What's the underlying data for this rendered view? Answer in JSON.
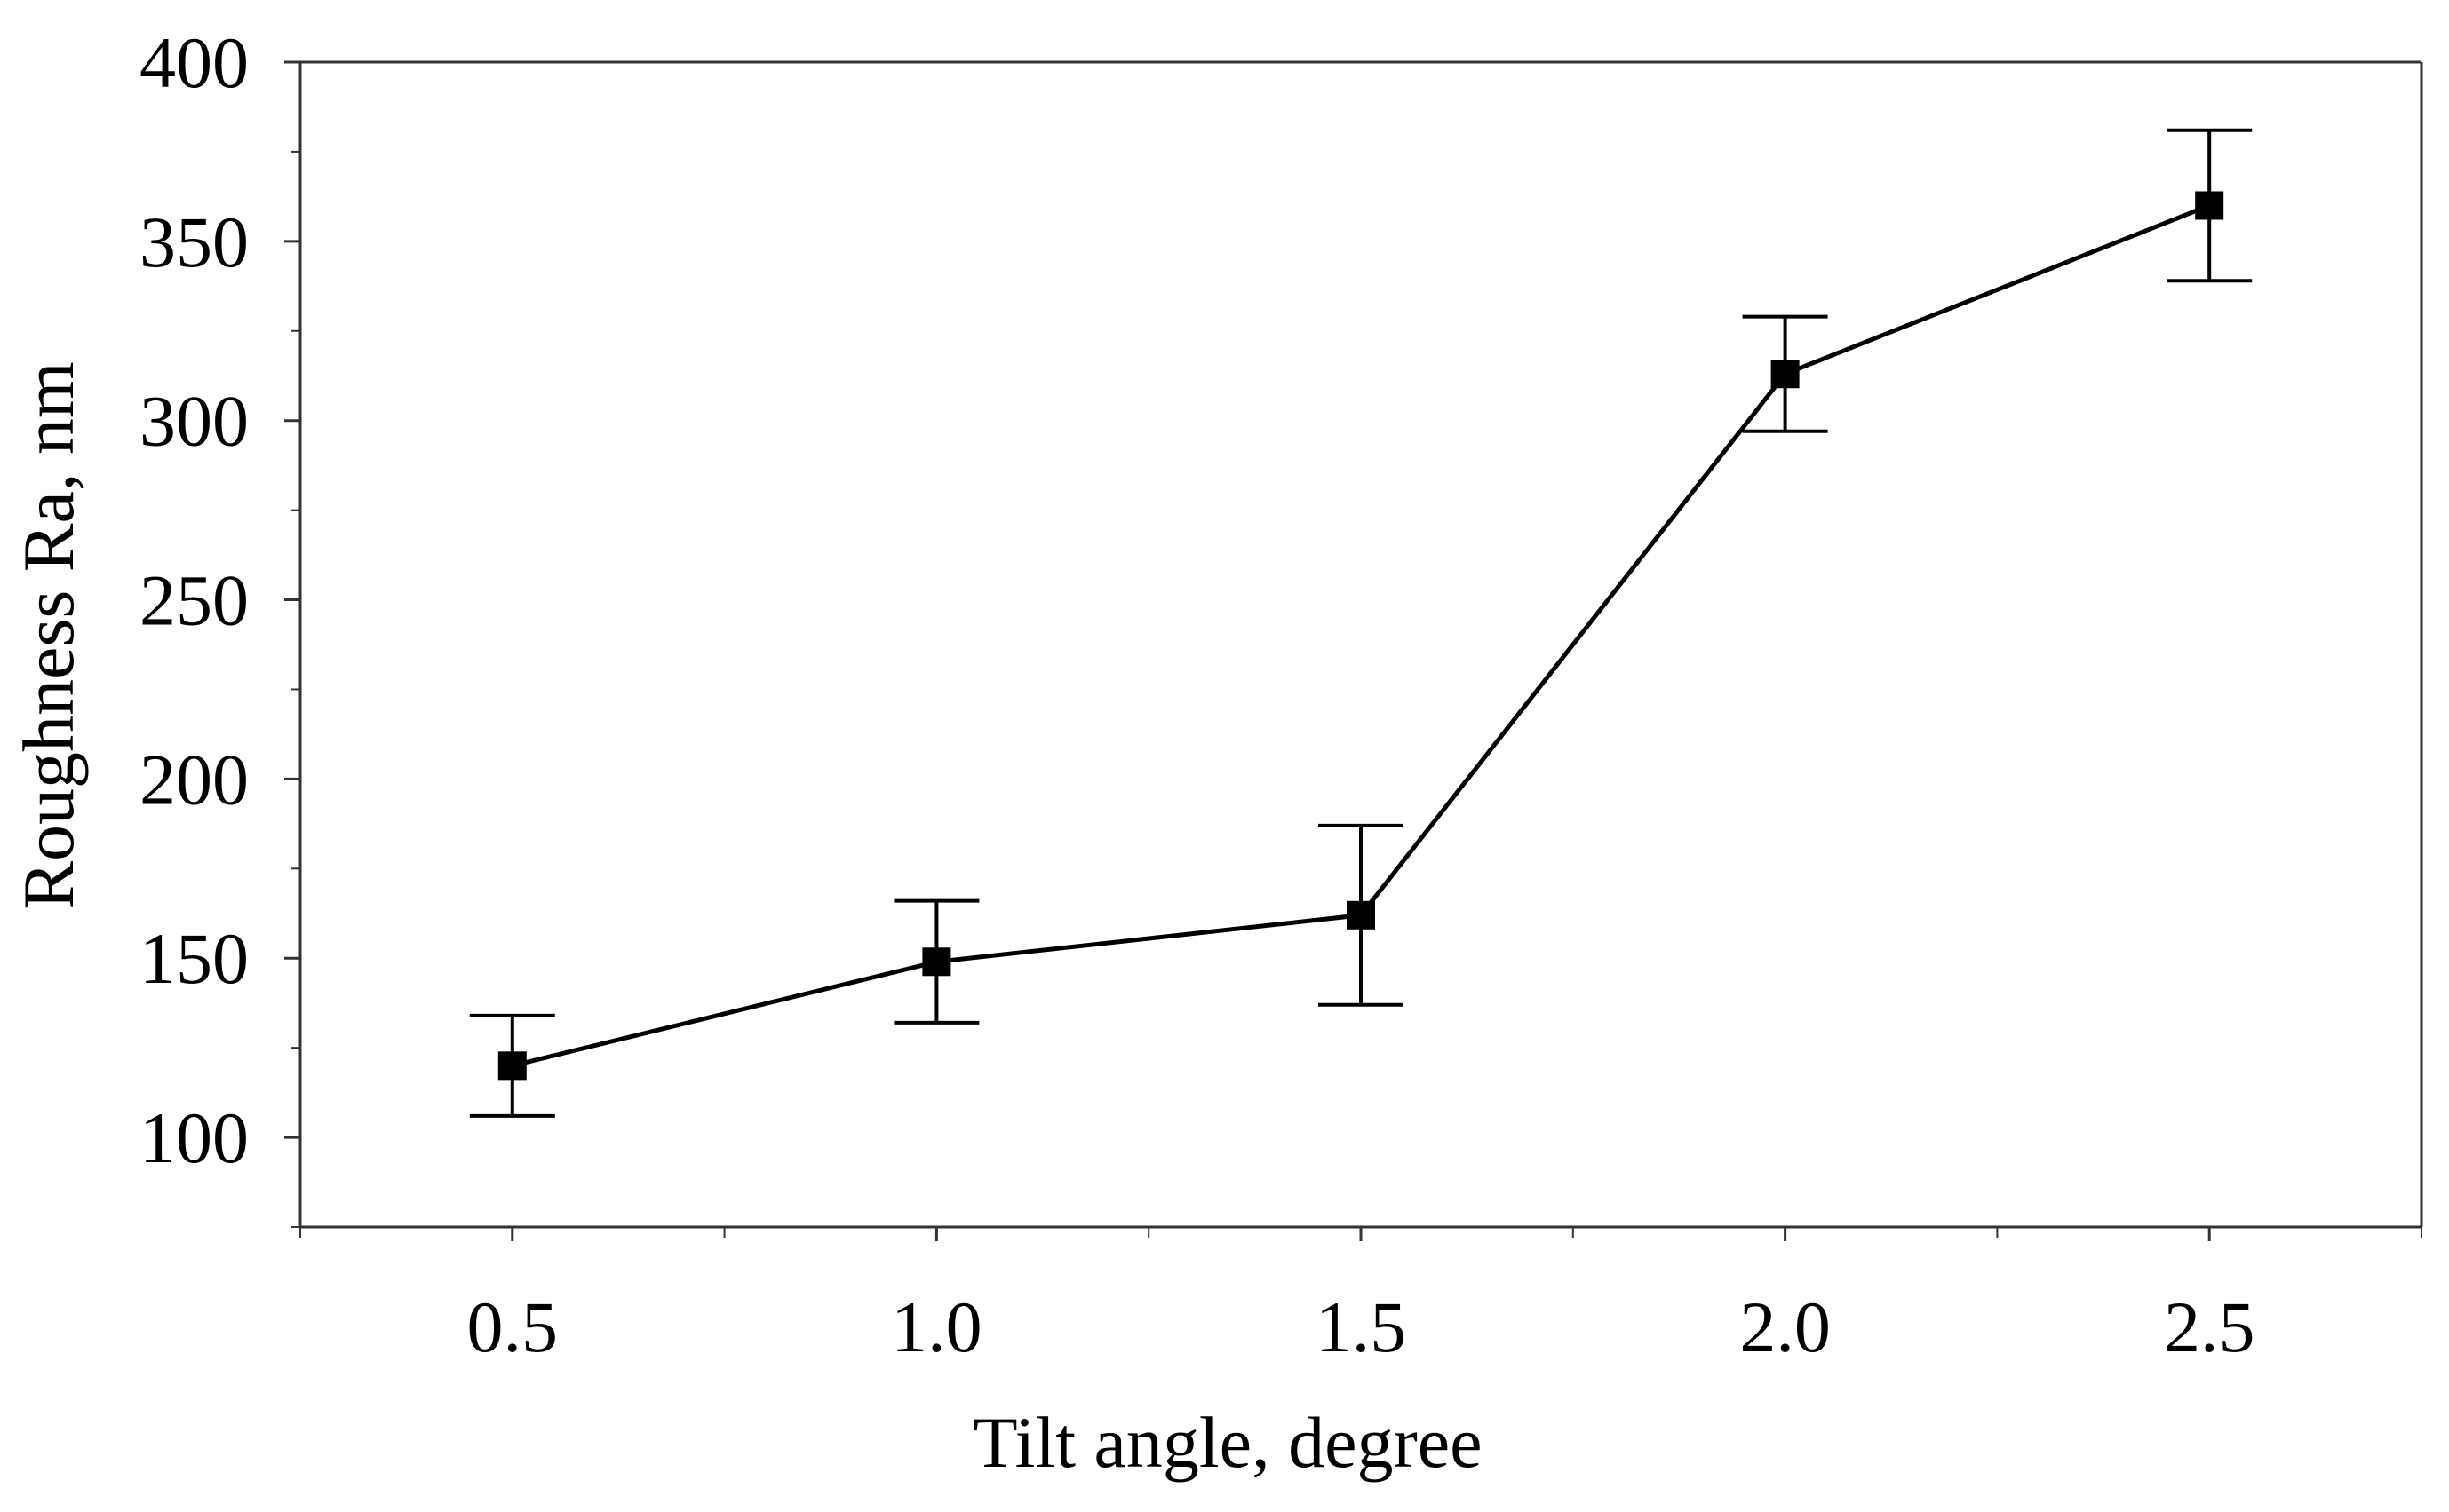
{
  "chart_data": {
    "type": "line",
    "title": "",
    "xlabel": "Tilt angle, degree",
    "ylabel": "Roughness Ra, nm",
    "xlim": [
      0.25,
      2.75
    ],
    "ylim": [
      75,
      400
    ],
    "x_ticks": [
      0.5,
      1.0,
      1.5,
      2.0,
      2.5
    ],
    "x_tick_labels": [
      "0.5",
      "1.0",
      "1.5",
      "2.0",
      "2.5"
    ],
    "x_minor_ticks": [
      0.25,
      0.75,
      1.25,
      1.75,
      2.25,
      2.75
    ],
    "y_ticks": [
      100,
      150,
      200,
      250,
      300,
      350,
      400
    ],
    "y_tick_labels": [
      "100",
      "150",
      "200",
      "250",
      "300",
      "350",
      "400"
    ],
    "y_minor_ticks": [
      75,
      125,
      175,
      225,
      275,
      325,
      375
    ],
    "grid": false,
    "legend": "none",
    "series": [
      {
        "name": "Roughness Ra",
        "marker": "square",
        "color": "#000000",
        "x": [
          0.5,
          1.0,
          1.5,
          2.0,
          2.5
        ],
        "y": [
          120,
          149,
          162,
          313,
          360
        ],
        "error_low": [
          106,
          132,
          137,
          297,
          339
        ],
        "error_high": [
          134,
          166,
          187,
          329,
          381
        ]
      }
    ]
  }
}
